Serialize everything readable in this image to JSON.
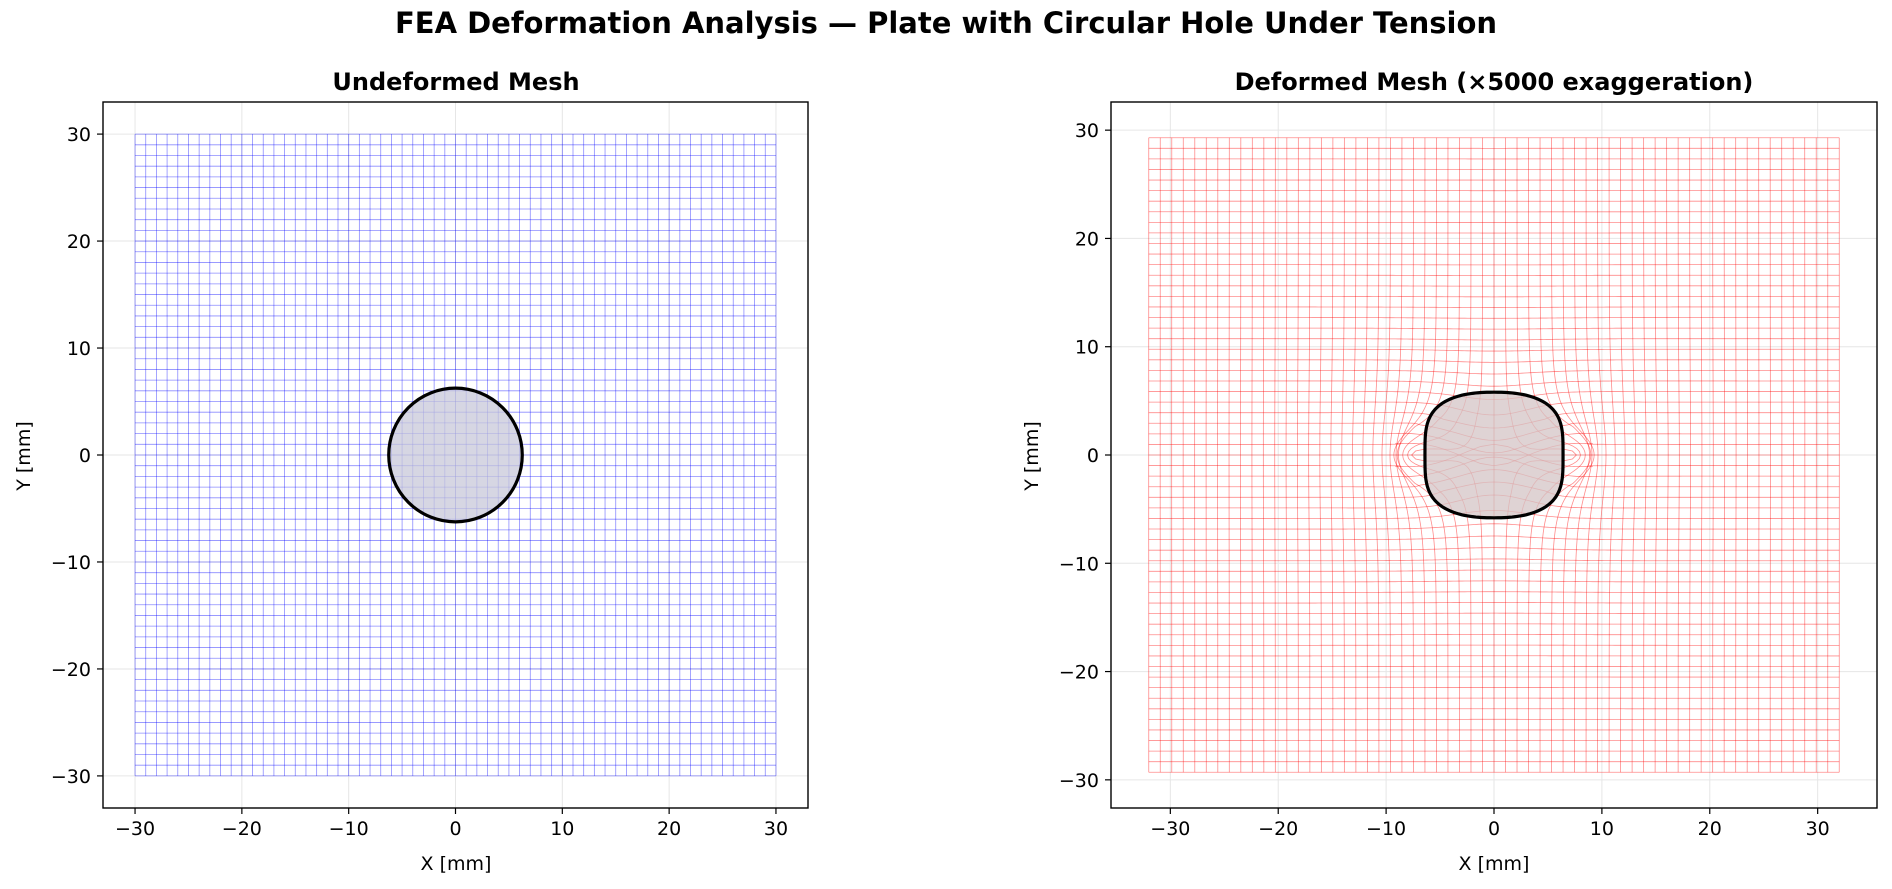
{
  "figure": {
    "title": "FEA Deformation Analysis — Plate with Circular Hole Under Tension"
  },
  "colors": {
    "undeformed_mesh": "#0000ff",
    "deformed_mesh": "#ff0000",
    "hole_outline": "#000000",
    "hole_fill_undeformed": "#c8c8da",
    "hole_fill_deformed": "#d4c4c6",
    "grid": "#e6e6e6"
  },
  "chart_data": [
    {
      "type": "mesh",
      "title": "Undeformed Mesh",
      "xlabel": "X [mm]",
      "ylabel": "Y [mm]",
      "xlim": [
        -33,
        33
      ],
      "ylim": [
        -33,
        33
      ],
      "xticks": [
        -30,
        -20,
        -10,
        0,
        10,
        20,
        30
      ],
      "yticks": [
        -30,
        -20,
        -10,
        0,
        10,
        20,
        30
      ],
      "xtick_labels": [
        "−30",
        "−20",
        "−10",
        "0",
        "10",
        "20",
        "30"
      ],
      "ytick_labels": [
        "−30",
        "−20",
        "−10",
        "0",
        "10",
        "20",
        "30"
      ],
      "grid": true,
      "mesh": {
        "x_range": [
          -30,
          30
        ],
        "y_range": [
          -30,
          30
        ],
        "divisions": 60,
        "color": "blue"
      },
      "hole": {
        "center": [
          0,
          0
        ],
        "radius": 6.25,
        "shape": "circle"
      },
      "exaggeration": 0
    },
    {
      "type": "mesh",
      "title": "Deformed Mesh (×5000 exaggeration)",
      "xlabel": "X [mm]",
      "ylabel": "Y [mm]",
      "xlim": [
        -35.5,
        35.5
      ],
      "ylim": [
        -32.6,
        32.6
      ],
      "xticks": [
        -30,
        -20,
        -10,
        0,
        10,
        20,
        30
      ],
      "yticks": [
        -30,
        -20,
        -10,
        0,
        10,
        20,
        30
      ],
      "xtick_labels": [
        "−30",
        "−20",
        "−10",
        "0",
        "10",
        "20",
        "30"
      ],
      "ytick_labels": [
        "−30",
        "−20",
        "−10",
        "0",
        "10",
        "20",
        "30"
      ],
      "grid": true,
      "mesh": {
        "x_range": [
          -30,
          30
        ],
        "y_range": [
          -30,
          30
        ],
        "divisions": 60,
        "color": "red",
        "deformed_x_range": [
          -32,
          32
        ],
        "deformed_y_range": [
          -29.3,
          29.3
        ]
      },
      "hole": {
        "center": [
          0,
          0
        ],
        "radius": 6.25,
        "shape": "deformed",
        "deformed_half_width": 6.4,
        "deformed_half_height": 5.8
      },
      "exaggeration": 5000
    }
  ]
}
